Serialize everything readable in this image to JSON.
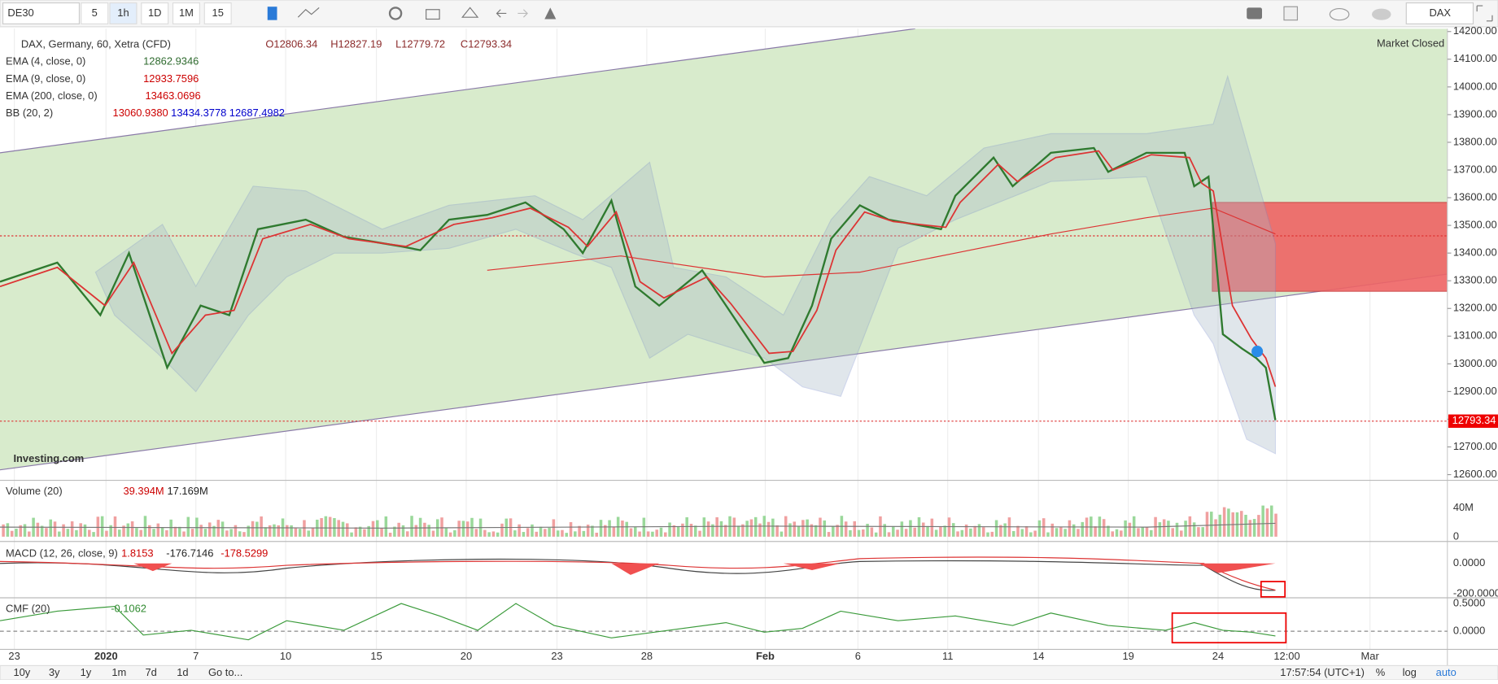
{
  "toolbar": {
    "symbol": "DE30",
    "intervals": [
      "5",
      "1h",
      "1D",
      "1M",
      "15"
    ],
    "exchange": "DAX"
  },
  "legend": {
    "title": "DAX, Germany, 60, Xetra (CFD)",
    "ohlc": [
      "O12806.34",
      "H12827.19",
      "L12779.72",
      "C12793.34"
    ],
    "indicators": [
      {
        "name": "EMA (4, close, 0)",
        "values": [
          "12862.9346"
        ]
      },
      {
        "name": "EMA (9, close, 0)",
        "values": [
          "12933.7596"
        ]
      },
      {
        "name": "EMA (200, close, 0)",
        "values": [
          "13463.0696"
        ]
      },
      {
        "name": "BB (20, 2)",
        "values": [
          "13060.9380",
          "13434.3778",
          "12687.4982"
        ]
      }
    ]
  },
  "market_status": "Market Closed",
  "logo": "Investing.com",
  "price_axis": [
    "14200.00",
    "14100.00",
    "14000.00",
    "13900.00",
    "13800.00",
    "13700.00",
    "13600.00",
    "13500.00",
    "13400.00",
    "13300.00",
    "13200.00",
    "13100.00",
    "13000.00",
    "12900.00",
    "12800.00",
    "12700.00",
    "12600.00"
  ],
  "current_price": "12793.34",
  "volume": {
    "name": "Volume (20)",
    "values": [
      "39.394M",
      "17.169M"
    ],
    "axis": [
      "40M",
      "0"
    ]
  },
  "macd": {
    "name": "MACD (12, 26, close, 9)",
    "values": [
      "1.8153",
      "-176.7146",
      "-178.5299"
    ],
    "axis": [
      "0.0000",
      "-200.0000"
    ]
  },
  "cmf": {
    "name": "CMF (20)",
    "values": [
      "-0.1062"
    ],
    "axis": [
      "0.5000",
      "0.0000"
    ]
  },
  "time_axis": [
    "23",
    "2020",
    "7",
    "10",
    "15",
    "20",
    "23",
    "28",
    "Feb",
    "6",
    "11",
    "14",
    "19",
    "24",
    "12:00",
    "Mar"
  ],
  "bottom_bar": {
    "ranges": [
      "10y",
      "3y",
      "1y",
      "1m",
      "7d",
      "1d",
      "Go to..."
    ],
    "clock": "17:57:54 (UTC+1)",
    "options": [
      "%",
      "log",
      "auto"
    ]
  }
}
